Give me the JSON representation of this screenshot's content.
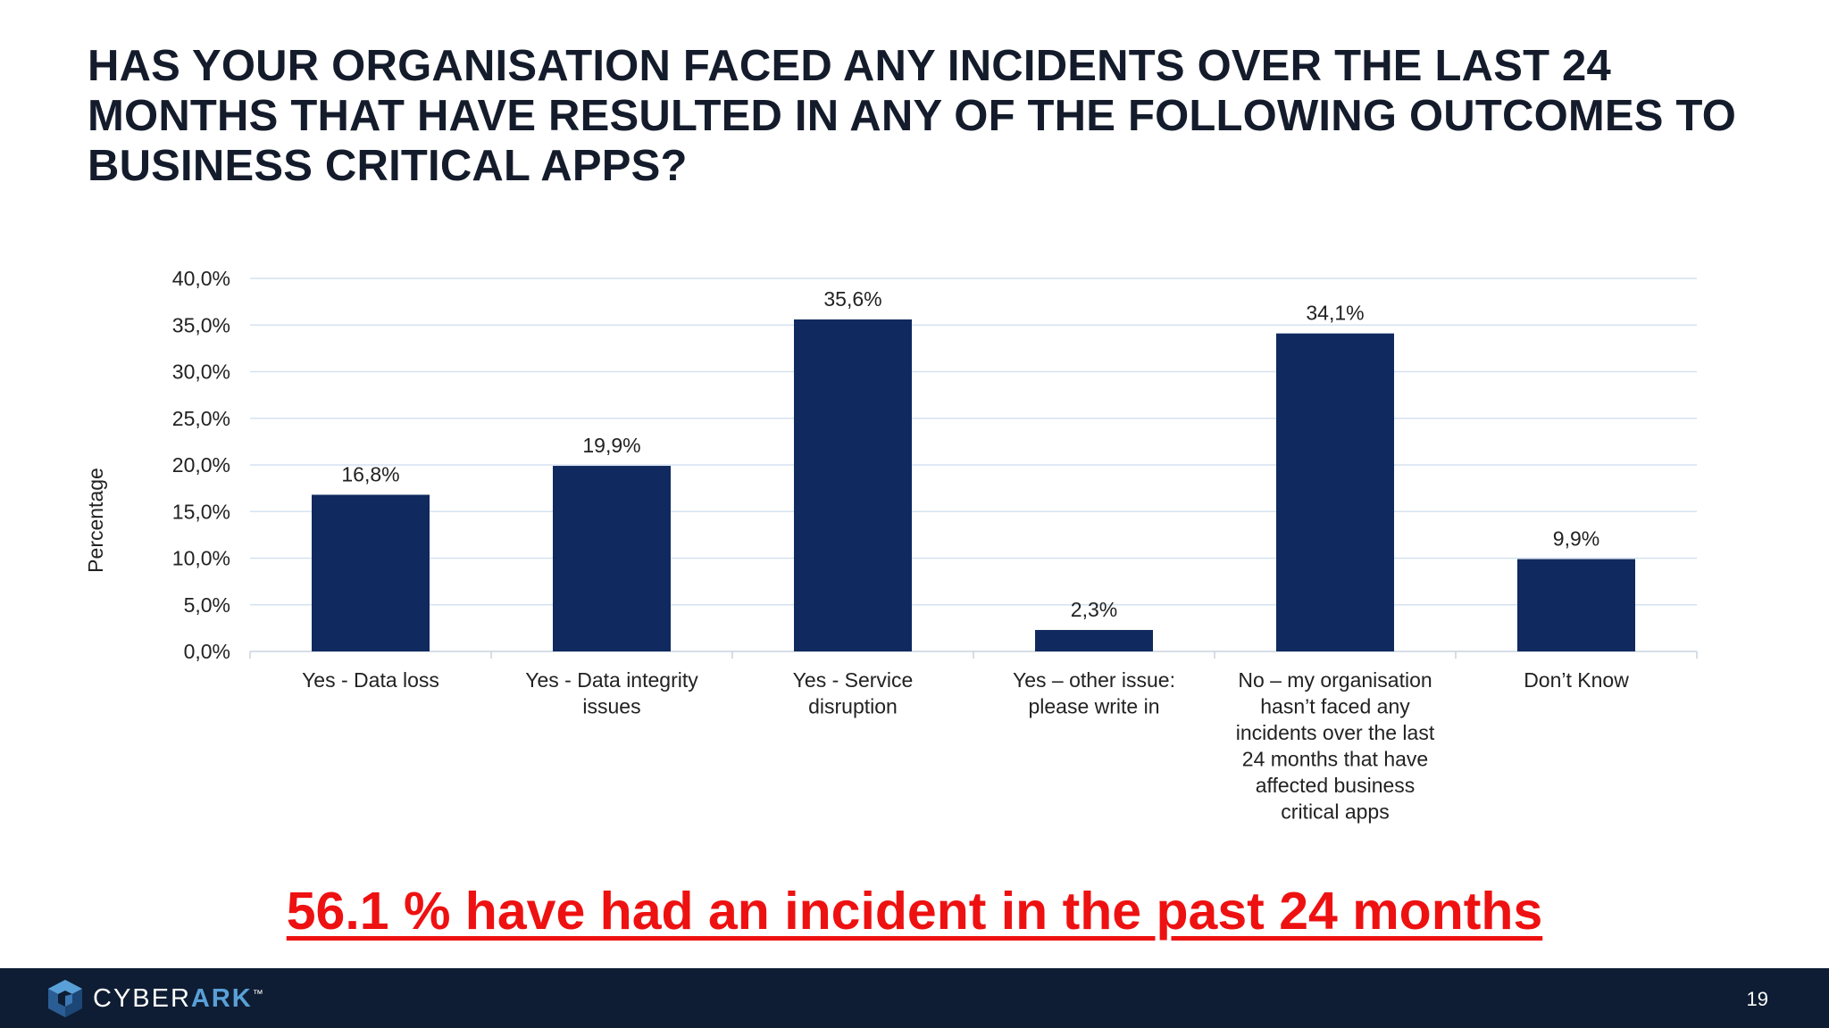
{
  "slide": {
    "title": "HAS YOUR ORGANISATION FACED ANY INCIDENTS OVER THE LAST 24 MONTHS THAT HAVE RESULTED IN ANY OF THE FOLLOWING OUTCOMES TO BUSINESS CRITICAL APPS?",
    "headline": "56.1 % have had an incident in the past 24 months",
    "page_number": "19"
  },
  "logo": {
    "text_a": "CYBER",
    "text_b": "ARK",
    "mark": "™"
  },
  "chart_data": {
    "type": "bar",
    "title": "",
    "xlabel": "",
    "ylabel": "Percentage",
    "ylim": [
      0,
      40
    ],
    "ytick_labels": [
      "0,0%",
      "5,0%",
      "10,0%",
      "15,0%",
      "20,0%",
      "25,0%",
      "30,0%",
      "35,0%",
      "40,0%"
    ],
    "grid": true,
    "categories": [
      "Yes - Data loss",
      "Yes - Data integrity issues",
      "Yes - Service disruption",
      "Yes – other issue: please write in",
      "No – my organisation hasn’t faced any incidents over the last 24 months that have affected business critical apps",
      "Don’t Know"
    ],
    "category_lines": [
      [
        "Yes - Data loss"
      ],
      [
        "Yes - Data integrity",
        "issues"
      ],
      [
        "Yes - Service",
        "disruption"
      ],
      [
        "Yes – other issue:",
        "please write in"
      ],
      [
        "No – my organisation",
        "hasn’t faced any",
        "incidents over the last",
        "24 months that have",
        "affected business",
        "critical apps"
      ],
      [
        "Don’t Know"
      ]
    ],
    "values": [
      16.8,
      19.9,
      35.6,
      2.3,
      34.1,
      9.9
    ],
    "value_labels": [
      "16,8%",
      "19,9%",
      "35,6%",
      "2,3%",
      "34,1%",
      "9,9%"
    ],
    "bar_color": "#102a5f",
    "grid_color": "#d6e2f0"
  }
}
